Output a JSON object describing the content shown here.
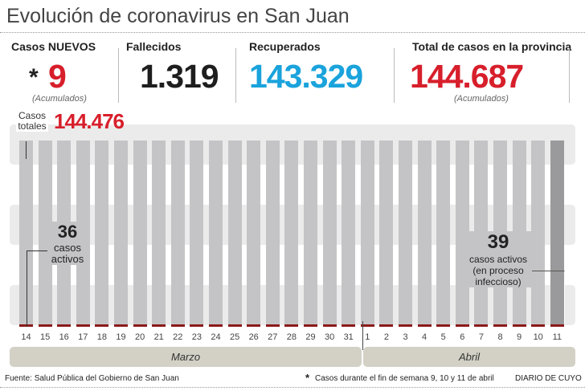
{
  "title": "Evolución de coronavirus en San Juan",
  "stats": {
    "new_label": "Casos NUEVOS",
    "new_value": "9",
    "new_asterisk": "*",
    "new_note": "(Acumulados)",
    "deaths_label": "Fallecidos",
    "deaths_value": "1.319",
    "recovered_label": "Recuperados",
    "recovered_value": "143.329",
    "total_label": "Total de casos en la provincia",
    "total_value": "144.687",
    "total_note": "(Acumulados)"
  },
  "colors": {
    "red": "#d71f2b",
    "blue": "#1aa3dc",
    "bar": "#c4c4c6",
    "bar_last": "#9a9a9c",
    "active": "#8b1a1a"
  },
  "chart_data": {
    "type": "bar",
    "categories": [
      "14",
      "15",
      "16",
      "17",
      "18",
      "19",
      "20",
      "21",
      "22",
      "23",
      "24",
      "25",
      "26",
      "27",
      "28",
      "29",
      "30",
      "31",
      "1",
      "2",
      "3",
      "4",
      "5",
      "6",
      "7",
      "8",
      "9",
      "10",
      "11"
    ],
    "months": [
      {
        "label": "Marzo",
        "count": 18
      },
      {
        "label": "Abril",
        "count": 11
      }
    ],
    "series": [
      {
        "name": "Casos totales",
        "values": [
          144476,
          144484,
          144491,
          144499,
          144506,
          144513,
          144521,
          144528,
          144535,
          144543,
          144550,
          144557,
          144565,
          144572,
          144579,
          144587,
          144594,
          144601,
          144609,
          144616,
          144623,
          144631,
          144638,
          144645,
          144653,
          144660,
          144667,
          144678,
          144687
        ]
      },
      {
        "name": "casos activos",
        "values": [
          36,
          36,
          37,
          38,
          38,
          39,
          39,
          40,
          40,
          41,
          41,
          40,
          40,
          40,
          39,
          39,
          39,
          38,
          38,
          38,
          38,
          38,
          39,
          39,
          39,
          39,
          39,
          39,
          39
        ]
      }
    ],
    "ylim": [
      0,
      144687
    ],
    "annotations": {
      "first_total_label": "Casos totales",
      "first_total_value": "144.476",
      "first_active_value": "36",
      "first_active_label": "casos activos",
      "last_active_value": "39",
      "last_active_label": "casos activos (en proceso infeccioso)"
    }
  },
  "footer": {
    "source": "Fuente: Salud Pública del Gobierno de San Juan",
    "note_asterisk": "*",
    "note": "Casos durante el fin de semana 9, 10 y 11 de abril",
    "brand": "DIARIO DE CUYO"
  }
}
